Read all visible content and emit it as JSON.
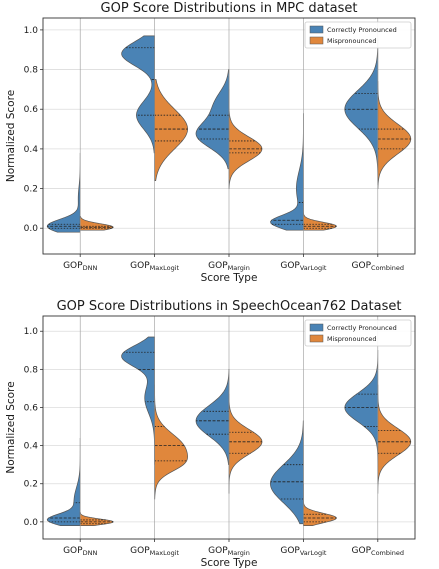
{
  "chart_data": [
    {
      "type": "violin",
      "title": "GOP Score Distributions in MPC dataset",
      "xlabel": "Score Type",
      "ylabel": "Normalized Score",
      "ylim": [
        -0.13,
        1.06
      ],
      "yticks": [
        "0.0",
        "0.2",
        "0.4",
        "0.6",
        "0.8",
        "1.0"
      ],
      "categories": [
        {
          "main": "GOP",
          "sub": "DNN"
        },
        {
          "main": "GOP",
          "sub": "MaxLogit"
        },
        {
          "main": "GOP",
          "sub": "Margin"
        },
        {
          "main": "GOP",
          "sub": "VarLogit"
        },
        {
          "main": "GOP",
          "sub": "Combined"
        }
      ],
      "legend": {
        "position": "top-right"
      },
      "grid": true,
      "series": [
        {
          "name": "Correctly Pronounced",
          "color": "#4a83b5",
          "side": "left",
          "violins": [
            {
              "y0": -0.02,
              "y1": 0.38,
              "modes": [
                [
                  0.01,
                  0.035,
                  1.0
                ],
                [
                  0.15,
                  0.06,
                  0.06
                ]
              ],
              "quartiles": [
                0.0,
                0.01,
                0.02
              ]
            },
            {
              "y0": 0.38,
              "y1": 0.97,
              "modes": [
                [
                  0.57,
                  0.07,
                  0.55
                ],
                [
                  0.88,
                  0.06,
                  1.0
                ]
              ],
              "quartiles": [
                0.57,
                0.75,
                0.91
              ]
            },
            {
              "y0": 0.3,
              "y1": 0.8,
              "modes": [
                [
                  0.47,
                  0.065,
                  1.0
                ],
                [
                  0.62,
                  0.07,
                  0.45
                ]
              ],
              "quartiles": [
                0.45,
                0.5,
                0.57
              ]
            },
            {
              "y0": -0.01,
              "y1": 0.58,
              "modes": [
                [
                  0.03,
                  0.035,
                  1.0
                ],
                [
                  0.2,
                  0.09,
                  0.22
                ]
              ],
              "quartiles": [
                0.02,
                0.04,
                0.13
              ]
            },
            {
              "y0": 0.22,
              "y1": 0.95,
              "modes": [
                [
                  0.6,
                  0.095,
                  1.0
                ]
              ],
              "quartiles": [
                0.5,
                0.6,
                0.68
              ]
            }
          ]
        },
        {
          "name": "Mispronounced",
          "color": "#e0873c",
          "side": "right",
          "violins": [
            {
              "y0": -0.01,
              "y1": 0.06,
              "modes": [
                [
                  0.005,
                  0.018,
                  1.0
                ]
              ],
              "quartiles": [
                0.0,
                0.005,
                0.01
              ]
            },
            {
              "y0": 0.24,
              "y1": 0.75,
              "modes": [
                [
                  0.5,
                  0.1,
                  1.0
                ]
              ],
              "quartiles": [
                0.44,
                0.5,
                0.57
              ]
            },
            {
              "y0": 0.2,
              "y1": 0.7,
              "modes": [
                [
                  0.4,
                  0.06,
                  1.0
                ]
              ],
              "quartiles": [
                0.38,
                0.4,
                0.44
              ]
            },
            {
              "y0": -0.01,
              "y1": 0.14,
              "modes": [
                [
                  0.01,
                  0.02,
                  1.0
                ]
              ],
              "quartiles": [
                0.0,
                0.01,
                0.02
              ]
            },
            {
              "y0": 0.2,
              "y1": 0.74,
              "modes": [
                [
                  0.45,
                  0.075,
                  1.0
                ]
              ],
              "quartiles": [
                0.4,
                0.45,
                0.5
              ]
            }
          ]
        }
      ]
    },
    {
      "type": "violin",
      "title": "GOP Score Distributions in SpeechOcean762 Dataset",
      "xlabel": "Score Type",
      "ylabel": "Normalized Score",
      "ylim": [
        -0.09,
        1.08
      ],
      "yticks": [
        "0.0",
        "0.2",
        "0.4",
        "0.6",
        "0.8",
        "1.0"
      ],
      "categories": [
        {
          "main": "GOP",
          "sub": "DNN"
        },
        {
          "main": "GOP",
          "sub": "MaxLogit"
        },
        {
          "main": "GOP",
          "sub": "Margin"
        },
        {
          "main": "GOP",
          "sub": "VarLogit"
        },
        {
          "main": "GOP",
          "sub": "Combined"
        }
      ],
      "legend": {
        "position": "top-right"
      },
      "grid": true,
      "series": [
        {
          "name": "Correctly Pronounced",
          "color": "#4a83b5",
          "side": "left",
          "violins": [
            {
              "y0": -0.02,
              "y1": 0.44,
              "modes": [
                [
                  0.01,
                  0.03,
                  1.0
                ],
                [
                  0.11,
                  0.07,
                  0.2
                ]
              ],
              "quartiles": [
                0.0,
                0.02,
                0.1
              ]
            },
            {
              "y0": 0.3,
              "y1": 0.97,
              "modes": [
                [
                  0.87,
                  0.055,
                  1.0
                ],
                [
                  0.65,
                  0.08,
                  0.3
                ]
              ],
              "quartiles": [
                0.63,
                0.8,
                0.89
              ]
            },
            {
              "y0": 0.3,
              "y1": 0.8,
              "modes": [
                [
                  0.53,
                  0.08,
                  1.0
                ]
              ],
              "quartiles": [
                0.46,
                0.53,
                0.58
              ]
            },
            {
              "y0": -0.01,
              "y1": 0.53,
              "modes": [
                [
                  0.2,
                  0.1,
                  1.0
                ]
              ],
              "quartiles": [
                0.12,
                0.21,
                0.3
              ]
            },
            {
              "y0": 0.2,
              "y1": 0.9,
              "modes": [
                [
                  0.6,
                  0.075,
                  1.0
                ]
              ],
              "quartiles": [
                0.5,
                0.6,
                0.67
              ]
            }
          ]
        },
        {
          "name": "Mispronounced",
          "color": "#e0873c",
          "side": "right",
          "violins": [
            {
              "y0": -0.02,
              "y1": 0.05,
              "modes": [
                [
                  0.0,
                  0.015,
                  1.0
                ]
              ],
              "quartiles": [
                -0.01,
                0.0,
                0.01
              ]
            },
            {
              "y0": 0.12,
              "y1": 0.72,
              "modes": [
                [
                  0.38,
                  0.08,
                  1.0
                ],
                [
                  0.3,
                  0.04,
                  0.35
                ]
              ],
              "quartiles": [
                0.32,
                0.4,
                0.5
              ]
            },
            {
              "y0": 0.15,
              "y1": 0.67,
              "modes": [
                [
                  0.42,
                  0.065,
                  1.0
                ]
              ],
              "quartiles": [
                0.36,
                0.42,
                0.47
              ]
            },
            {
              "y0": -0.02,
              "y1": 0.2,
              "modes": [
                [
                  0.02,
                  0.025,
                  1.0
                ]
              ],
              "quartiles": [
                0.0,
                0.02,
                0.04
              ]
            },
            {
              "y0": 0.15,
              "y1": 0.72,
              "modes": [
                [
                  0.42,
                  0.07,
                  1.0
                ]
              ],
              "quartiles": [
                0.36,
                0.42,
                0.48
              ]
            }
          ]
        }
      ]
    }
  ]
}
